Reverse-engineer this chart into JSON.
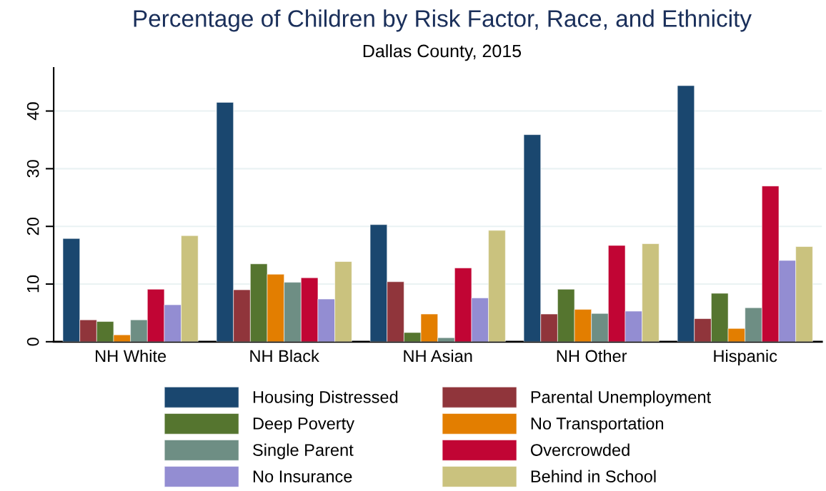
{
  "chart_data": {
    "type": "bar",
    "title": "Percentage of Children by Risk Factor, Race, and Ethnicity",
    "subtitle": "Dallas County, 2015",
    "categories": [
      "NH White",
      "NH Black",
      "NH Asian",
      "NH Other",
      "Hispanic"
    ],
    "series": [
      {
        "name": "Housing Distressed",
        "color": "#1a476f",
        "values": [
          17.9,
          41.5,
          20.3,
          35.9,
          44.4
        ]
      },
      {
        "name": "Parental Unemployment",
        "color": "#90353b",
        "values": [
          3.8,
          9.0,
          10.4,
          4.8,
          4.0
        ]
      },
      {
        "name": "Deep Poverty",
        "color": "#55752f",
        "values": [
          3.5,
          13.5,
          1.6,
          9.1,
          8.4
        ]
      },
      {
        "name": "No Transportation",
        "color": "#e37e00",
        "values": [
          1.2,
          11.7,
          4.8,
          5.6,
          2.3
        ]
      },
      {
        "name": "Single Parent",
        "color": "#6e8e84",
        "values": [
          3.8,
          10.3,
          0.7,
          4.9,
          5.9
        ]
      },
      {
        "name": "Overcrowded",
        "color": "#c10534",
        "values": [
          9.1,
          11.1,
          12.8,
          16.7,
          27.0
        ]
      },
      {
        "name": "No Insurance",
        "color": "#938dd2",
        "values": [
          6.4,
          7.4,
          7.6,
          5.3,
          14.1
        ]
      },
      {
        "name": "Behind in School",
        "color": "#cac27e",
        "values": [
          18.4,
          13.9,
          19.3,
          17.0,
          16.5
        ]
      }
    ],
    "ylim": [
      0,
      47.5
    ],
    "yticks": [
      0,
      10,
      20,
      30,
      40
    ],
    "grid": "y",
    "legend": "bottom"
  }
}
